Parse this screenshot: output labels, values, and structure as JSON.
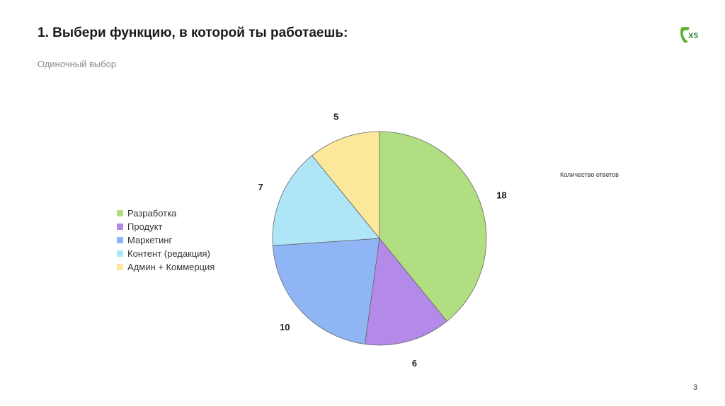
{
  "slide": {
    "title": "1. Выбери функцию, в которой ты работаешь:",
    "subtitle": "Одиночный выбор",
    "logo_text": "Х5",
    "page_number": "3"
  },
  "chart_data": {
    "type": "pie",
    "series_name": "Количество ответов",
    "categories": [
      "Разработка",
      "Продукт",
      "Маркетинг",
      "Контент (редакция)",
      "Админ + Коммерция"
    ],
    "values": [
      18,
      6,
      10,
      7,
      5
    ],
    "colors": [
      "#b2de82",
      "#b38ae8",
      "#8fb5f5",
      "#aee6f8",
      "#fbe89a"
    ],
    "data_labels": [
      "18",
      "6",
      "10",
      "7",
      "5"
    ],
    "start_angle_deg": 0,
    "direction": "clockwise",
    "legend_position": "left"
  }
}
